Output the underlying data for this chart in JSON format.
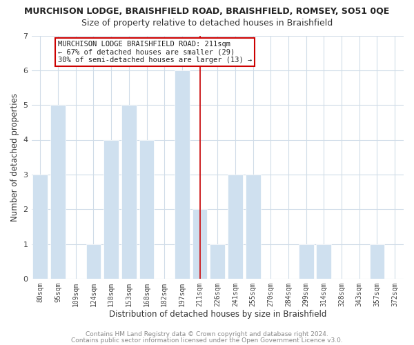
{
  "title": "MURCHISON LODGE, BRAISHFIELD ROAD, BRAISHFIELD, ROMSEY, SO51 0QE",
  "subtitle": "Size of property relative to detached houses in Braishfield",
  "xlabel": "Distribution of detached houses by size in Braishfield",
  "ylabel": "Number of detached properties",
  "bar_labels": [
    "80sqm",
    "95sqm",
    "109sqm",
    "124sqm",
    "138sqm",
    "153sqm",
    "168sqm",
    "182sqm",
    "197sqm",
    "211sqm",
    "226sqm",
    "241sqm",
    "255sqm",
    "270sqm",
    "284sqm",
    "299sqm",
    "314sqm",
    "328sqm",
    "343sqm",
    "357sqm",
    "372sqm"
  ],
  "bar_values": [
    3,
    5,
    0,
    1,
    4,
    5,
    4,
    0,
    6,
    2,
    1,
    3,
    3,
    0,
    0,
    1,
    1,
    0,
    0,
    1,
    0
  ],
  "bar_color": "#cfe0ef",
  "bar_edge_color": "#ffffff",
  "highlight_index": 9,
  "highlight_line_color": "#cc0000",
  "ylim": [
    0,
    7
  ],
  "yticks": [
    0,
    1,
    2,
    3,
    4,
    5,
    6,
    7
  ],
  "annotation_title": "MURCHISON LODGE BRAISHFIELD ROAD: 211sqm",
  "annotation_line1": "← 67% of detached houses are smaller (29)",
  "annotation_line2": "30% of semi-detached houses are larger (13) →",
  "annotation_box_facecolor": "#ffffff",
  "annotation_box_edgecolor": "#cc0000",
  "footer1": "Contains HM Land Registry data © Crown copyright and database right 2024.",
  "footer2": "Contains public sector information licensed under the Open Government Licence v3.0.",
  "background_color": "#ffffff",
  "grid_color": "#d0dce8",
  "title_fontsize": 9,
  "subtitle_fontsize": 9
}
